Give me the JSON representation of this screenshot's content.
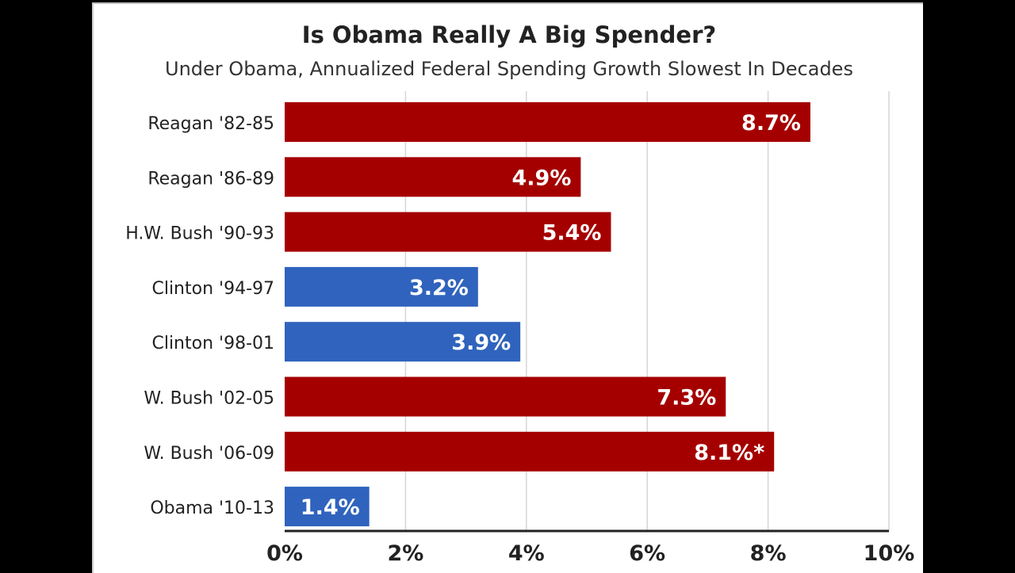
{
  "chart_data": {
    "type": "bar",
    "orientation": "horizontal",
    "title": "Is Obama Really A Big Spender?",
    "subtitle": "Under Obama, Annualized Federal Spending Growth Slowest In Decades",
    "xlabel": "",
    "ylabel": "",
    "xlim": [
      0,
      10
    ],
    "x_ticks": [
      "0%",
      "2%",
      "4%",
      "6%",
      "8%",
      "10%"
    ],
    "x_tick_values": [
      0,
      2,
      4,
      6,
      8,
      10
    ],
    "grid": true,
    "categories": [
      "Reagan '82-85",
      "Reagan '86-89",
      "H.W. Bush '90-93",
      "Clinton '94-97",
      "Clinton '98-01",
      "W. Bush '02-05",
      "W. Bush '06-09",
      "Obama '10-13"
    ],
    "values": [
      8.7,
      4.9,
      5.4,
      3.2,
      3.9,
      7.3,
      8.1,
      1.4
    ],
    "data_labels": [
      "8.7%",
      "4.9%",
      "5.4%",
      "3.2%",
      "3.9%",
      "7.3%",
      "8.1%*",
      "1.4%"
    ],
    "party": [
      "R",
      "R",
      "R",
      "D",
      "D",
      "R",
      "R",
      "D"
    ],
    "colors": {
      "R": "#a50000",
      "D": "#2f63bd"
    }
  }
}
